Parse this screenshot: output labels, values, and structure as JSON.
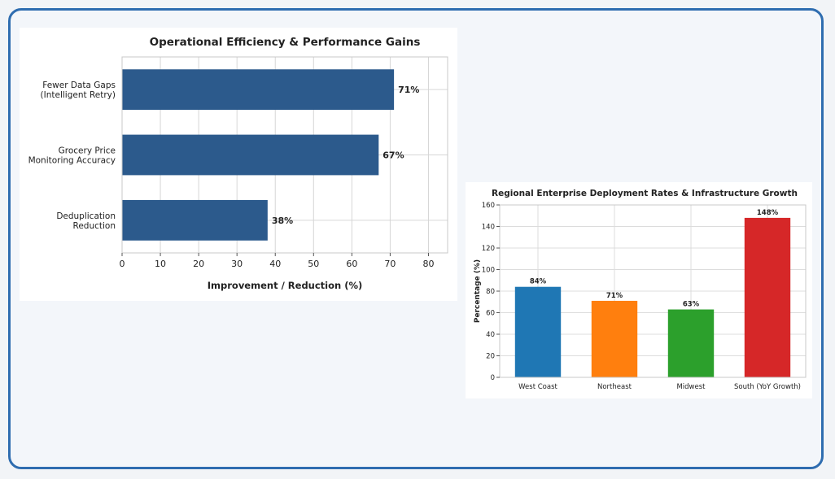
{
  "colors": {
    "frame_border": "#2f6db0",
    "bar_blue": "#2c5a8c"
  },
  "chart_data": [
    {
      "type": "bar",
      "orientation": "horizontal",
      "title": "Operational Efficiency & Performance Gains",
      "xlabel": "Improvement / Reduction (%)",
      "ylabel": "",
      "categories": [
        [
          "Fewer Data Gaps",
          "(Intelligent Retry)"
        ],
        [
          "Grocery Price",
          "Monitoring Accuracy"
        ],
        [
          "Deduplication",
          "Reduction"
        ]
      ],
      "values": [
        71,
        67,
        38
      ],
      "data_labels": [
        "71%",
        "67%",
        "38%"
      ],
      "xlim": [
        0,
        85
      ],
      "xticks": [
        0,
        10,
        20,
        30,
        40,
        50,
        60,
        70,
        80
      ],
      "grid": true,
      "color": "#2c5a8c"
    },
    {
      "type": "bar",
      "orientation": "vertical",
      "title": "Regional Enterprise Deployment Rates & Infrastructure Growth",
      "xlabel": "",
      "ylabel": "Percentage (%)",
      "categories": [
        "West Coast",
        "Northeast",
        "Midwest",
        "South (YoY Growth)"
      ],
      "values": [
        84,
        71,
        63,
        148
      ],
      "data_labels": [
        "84%",
        "71%",
        "63%",
        "148%"
      ],
      "colors": [
        "#1f77b4",
        "#ff7f0e",
        "#2ca02c",
        "#d62728"
      ],
      "ylim": [
        0,
        160
      ],
      "yticks": [
        0,
        20,
        40,
        60,
        80,
        100,
        120,
        140,
        160
      ],
      "grid": true
    }
  ]
}
